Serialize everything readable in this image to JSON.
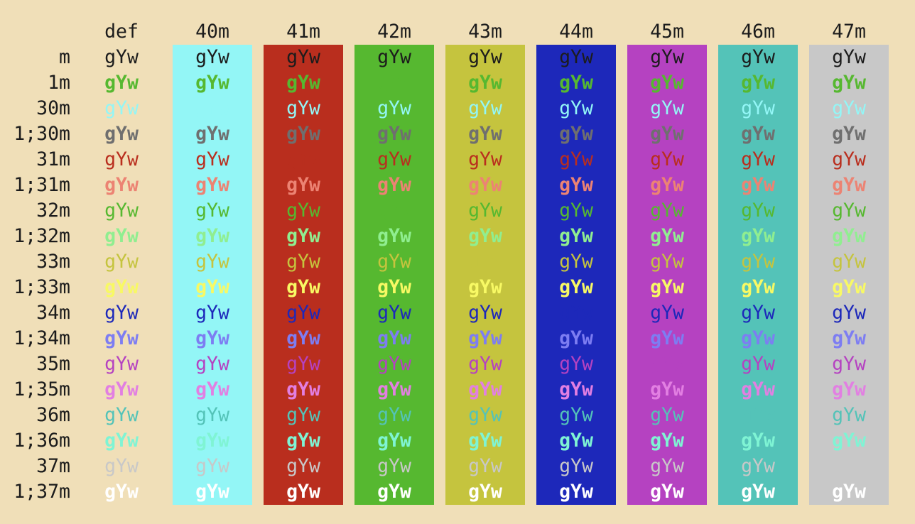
{
  "terminal": {
    "description": "ANSI terminal color test grid showing sample text over background color codes 40m-47m",
    "cell_text": "gYw",
    "colors": {
      "page_background": "#f0dfb8",
      "default_foreground": "#1c1c1c"
    },
    "columns": [
      {
        "label": "def",
        "bg": ""
      },
      {
        "label": "40m",
        "bg": "#93f6f6"
      },
      {
        "label": "41m",
        "bg": "#b92e1e"
      },
      {
        "label": "42m",
        "bg": "#56b830"
      },
      {
        "label": "43m",
        "bg": "#c5c43e"
      },
      {
        "label": "44m",
        "bg": "#1d28ba"
      },
      {
        "label": "45m",
        "bg": "#b542c1"
      },
      {
        "label": "46m",
        "bg": "#54c3b8"
      },
      {
        "label": "47m",
        "bg": "#c8c8c8"
      }
    ],
    "rows": [
      {
        "label": "m",
        "bold": false,
        "fg": "#1c1c1c"
      },
      {
        "label": "1m",
        "bold": true,
        "fg": "#56b830"
      },
      {
        "label": "30m",
        "bold": false,
        "fg": "#93f6f6"
      },
      {
        "label": "1;30m",
        "bold": true,
        "fg": "#6f6f6f"
      },
      {
        "label": "31m",
        "bold": false,
        "fg": "#b92e1e"
      },
      {
        "label": "1;31m",
        "bold": true,
        "fg": "#ec8373"
      },
      {
        "label": "32m",
        "bold": false,
        "fg": "#56b830"
      },
      {
        "label": "1;32m",
        "bold": true,
        "fg": "#90ee90"
      },
      {
        "label": "33m",
        "bold": false,
        "fg": "#c5c43e"
      },
      {
        "label": "1;33m",
        "bold": true,
        "fg": "#f8f964"
      },
      {
        "label": "34m",
        "bold": false,
        "fg": "#1d28ba"
      },
      {
        "label": "1;34m",
        "bold": true,
        "fg": "#7d7df2"
      },
      {
        "label": "35m",
        "bold": false,
        "fg": "#b542c1"
      },
      {
        "label": "1;35m",
        "bold": true,
        "fg": "#e27fe2"
      },
      {
        "label": "36m",
        "bold": false,
        "fg": "#54c3b8"
      },
      {
        "label": "1;36m",
        "bold": true,
        "fg": "#7ff4d4"
      },
      {
        "label": "37m",
        "bold": false,
        "fg": "#c8c8c8"
      },
      {
        "label": "1;37m",
        "bold": true,
        "fg": "#ffffff"
      }
    ]
  }
}
